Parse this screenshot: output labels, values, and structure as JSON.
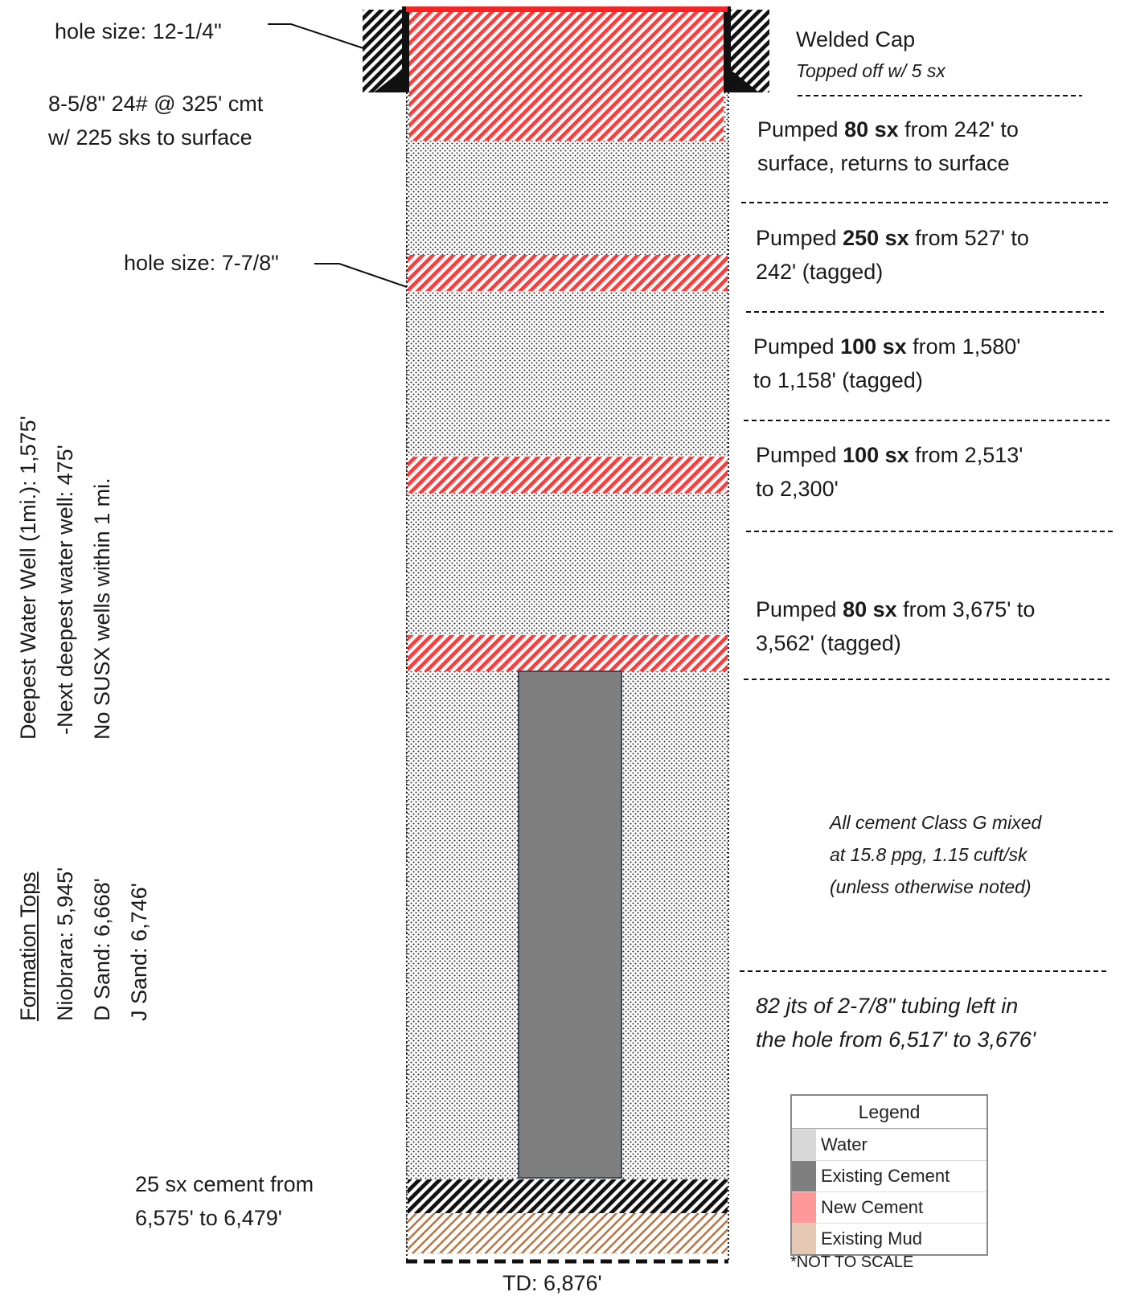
{
  "labels": {
    "surface_hole": "hole size: 12-1/4\"",
    "surface_casing_1": "8-5/8\" 24# @ 325' cmt",
    "surface_casing_2": "w/ 225 sks to surface",
    "prod_hole": "hole size: 7-7/8\"",
    "bottom_plug_1": "25 sx cement from",
    "bottom_plug_2": "6,575' to 6,479'",
    "td": "TD: 6,876'",
    "welded_cap": "Welded Cap",
    "topped_off": "Topped off w/ 5 sx"
  },
  "plugs": [
    {
      "pre": "Pumped ",
      "sx": "80 sx",
      "post": " from 242' to",
      "line2": "surface, returns to surface"
    },
    {
      "pre": "Pumped ",
      "sx": "250 sx",
      "post": " from 527' to",
      "line2": "242' (tagged)"
    },
    {
      "pre": "Pumped ",
      "sx": "100 sx",
      "post": " from 1,580'",
      "line2": "to 1,158' (tagged)"
    },
    {
      "pre": "Pumped ",
      "sx": "100 sx",
      "post": " from 2,513'",
      "line2": "to 2,300'"
    },
    {
      "pre": "Pumped ",
      "sx": "80 sx",
      "post": " from 3,675' to",
      "line2": "3,562' (tagged)"
    }
  ],
  "cement_note": [
    "All cement Class G mixed",
    "at 15.8 ppg, 1.15 cuft/sk",
    "(unless otherwise noted)"
  ],
  "tubing_note": [
    "82 jts of 2-7/8\" tubing left in",
    "the hole from 6,517' to 3,676'"
  ],
  "water_well": {
    "line1": "Deepest Water Well (1mi.): 1,575'",
    "line2": "-Next deepest water well: 475'",
    "line3": "No SUSX wells within 1 mi."
  },
  "formation_tops": {
    "title": "Formation Tops",
    "items": [
      "Niobrara: 5,945'",
      "D Sand: 6,668'",
      "J Sand: 6,746'"
    ]
  },
  "legend": {
    "title": "Legend",
    "items": [
      {
        "label": "Water",
        "color": "#d8d8d8"
      },
      {
        "label": "Existing Cement",
        "color": "#7f7f7f"
      },
      {
        "label": "New Cement",
        "color": "#ff9999"
      },
      {
        "label": "Existing Mud",
        "color": "#e6c9b4"
      }
    ],
    "footnote": "*NOT TO SCALE"
  },
  "colors": {
    "new_cement": "#ff3b3b",
    "existing_cement": "#7f7f7f",
    "existing_mud": "#b4794a",
    "water_dots": "#2a2a2a"
  }
}
